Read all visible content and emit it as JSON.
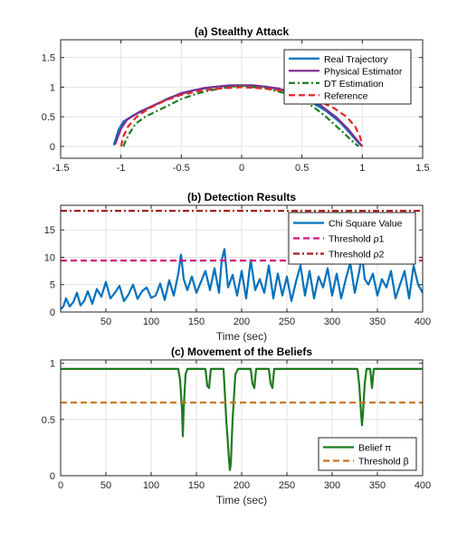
{
  "chart_data": [
    {
      "type": "line",
      "title": "(a) Stealthy Attack",
      "xlabel": "",
      "ylabel": "",
      "xlim": [
        -1.5,
        1.5
      ],
      "ylim": [
        -0.2,
        1.8
      ],
      "xticks": [
        -1.5,
        -1,
        -0.5,
        0,
        0.5,
        1,
        1.5
      ],
      "xtick_labels": [
        "-1.5",
        "-1",
        "-0.5",
        "0",
        "0.5",
        "1",
        "1.5"
      ],
      "yticks": [
        0,
        0.5,
        1,
        1.5
      ],
      "ytick_labels": [
        "0",
        "0.5",
        "1",
        "1.5"
      ],
      "grid": true,
      "legend_position": "top-right",
      "series": [
        {
          "name": "Real Trajectory",
          "color": "#0072BD",
          "dash": "solid",
          "x": [
            -1.06,
            -1.02,
            -0.98,
            -0.9,
            -0.8,
            -0.6,
            -0.4,
            -0.2,
            0,
            0.2,
            0.4,
            0.55,
            0.7,
            0.82,
            0.9,
            0.96,
            1.0
          ],
          "y": [
            0.02,
            0.28,
            0.42,
            0.52,
            0.62,
            0.82,
            0.95,
            1.01,
            1.03,
            1.01,
            0.92,
            0.78,
            0.6,
            0.4,
            0.22,
            0.08,
            0.0
          ]
        },
        {
          "name": "Physical Estimator",
          "color": "#7E2F8E",
          "dash": "solid",
          "x": [
            -1.05,
            -1.0,
            -0.95,
            -0.85,
            -0.7,
            -0.5,
            -0.3,
            -0.1,
            0.1,
            0.3,
            0.5,
            0.65,
            0.78,
            0.88,
            0.95,
            1.0
          ],
          "y": [
            0.03,
            0.3,
            0.45,
            0.58,
            0.72,
            0.9,
            0.99,
            1.03,
            1.03,
            0.98,
            0.86,
            0.7,
            0.5,
            0.3,
            0.12,
            0.0
          ]
        },
        {
          "name": "DT Estimation",
          "color": "#1E7B1E",
          "dash": "dashdot",
          "x": [
            -0.98,
            -0.96,
            -0.93,
            -0.88,
            -0.8,
            -0.7,
            -0.6,
            -0.5,
            -0.4,
            -0.3,
            -0.2,
            -0.1,
            0,
            0.1,
            0.2,
            0.3,
            0.4,
            0.5,
            0.6,
            0.7,
            0.78,
            0.85,
            0.9,
            0.94,
            0.97
          ],
          "y": [
            0.0,
            0.1,
            0.22,
            0.38,
            0.5,
            0.6,
            0.7,
            0.8,
            0.87,
            0.93,
            0.97,
            1.0,
            1.02,
            1.0,
            0.98,
            0.93,
            0.88,
            0.78,
            0.66,
            0.5,
            0.35,
            0.22,
            0.12,
            0.05,
            0.0
          ]
        },
        {
          "name": "Reference",
          "color": "#E8262A",
          "dash": "dashed",
          "x": [
            -1.0,
            -0.98,
            -0.94,
            -0.87,
            -0.77,
            -0.64,
            -0.5,
            -0.34,
            -0.17,
            0,
            0.17,
            0.34,
            0.5,
            0.64,
            0.77,
            0.87,
            0.94,
            0.98,
            1.0
          ],
          "y": [
            0.0,
            0.17,
            0.34,
            0.5,
            0.64,
            0.77,
            0.87,
            0.94,
            0.98,
            1.0,
            0.98,
            0.94,
            0.87,
            0.77,
            0.64,
            0.5,
            0.34,
            0.17,
            0.0
          ]
        }
      ]
    },
    {
      "type": "line",
      "title": "(b) Detection Results",
      "xlabel": "Time (sec)",
      "ylabel": "",
      "xlim": [
        0,
        400
      ],
      "ylim": [
        0,
        19.5
      ],
      "xticks": [
        50,
        100,
        150,
        200,
        250,
        300,
        350,
        400
      ],
      "xtick_labels": [
        "50",
        "100",
        "150",
        "200",
        "250",
        "300",
        "350",
        "400"
      ],
      "yticks": [
        0,
        5,
        10,
        15
      ],
      "ytick_labels": [
        "0",
        "5",
        "10",
        "15"
      ],
      "grid": true,
      "legend_position": "top-right",
      "series": [
        {
          "name": "Chi Square Value",
          "color": "#0072BD",
          "dash": "solid",
          "x": [
            0,
            3,
            6,
            10,
            14,
            18,
            22,
            26,
            30,
            35,
            40,
            45,
            50,
            55,
            60,
            65,
            70,
            75,
            80,
            85,
            90,
            95,
            100,
            105,
            110,
            115,
            120,
            125,
            130,
            133,
            136,
            140,
            145,
            150,
            155,
            160,
            165,
            170,
            175,
            178,
            181,
            185,
            190,
            195,
            200,
            205,
            210,
            215,
            220,
            225,
            230,
            235,
            240,
            245,
            250,
            255,
            260,
            265,
            270,
            275,
            280,
            285,
            290,
            295,
            300,
            305,
            310,
            315,
            320,
            325,
            330,
            333,
            336,
            340,
            345,
            350,
            355,
            360,
            365,
            370,
            375,
            380,
            385,
            390,
            395,
            400
          ],
          "y": [
            0.5,
            1.0,
            2.5,
            1.0,
            1.8,
            3.5,
            1.2,
            2.0,
            3.8,
            1.5,
            4.2,
            2.8,
            5.5,
            2.5,
            3.5,
            4.8,
            2.0,
            3.2,
            5.0,
            2.4,
            3.8,
            4.5,
            2.6,
            3.0,
            5.2,
            2.2,
            5.8,
            3.0,
            7.0,
            10.5,
            6.0,
            4.0,
            6.5,
            3.5,
            5.5,
            7.5,
            4.0,
            8.0,
            3.5,
            9.5,
            11.5,
            4.5,
            6.8,
            3.0,
            7.5,
            2.5,
            9.5,
            4.0,
            6.0,
            3.5,
            8.5,
            2.5,
            7.0,
            3.0,
            6.5,
            2.0,
            5.5,
            8.5,
            3.0,
            7.5,
            2.5,
            6.5,
            4.5,
            8.0,
            3.0,
            7.0,
            2.5,
            6.0,
            9.0,
            3.5,
            7.5,
            10.5,
            6.0,
            5.0,
            7.0,
            3.0,
            6.0,
            4.5,
            7.5,
            2.5,
            5.0,
            7.5,
            2.5,
            8.5,
            5.0,
            3.5
          ]
        },
        {
          "name": "Threshold ρ1",
          "color": "#D6127A",
          "dash": "dashed",
          "x": [
            0,
            400
          ],
          "y": [
            9.4,
            9.4
          ]
        },
        {
          "name": "Threshold ρ2",
          "color": "#A51C1C",
          "dash": "dashdot",
          "x": [
            0,
            400
          ],
          "y": [
            18.5,
            18.5
          ]
        }
      ]
    },
    {
      "type": "line",
      "title": "(c) Movement of the Beliefs",
      "xlabel": "Time (sec)",
      "ylabel": "",
      "xlim": [
        0,
        400
      ],
      "ylim": [
        0,
        1.03
      ],
      "xticks": [
        0,
        50,
        100,
        150,
        200,
        250,
        300,
        350,
        400
      ],
      "xtick_labels": [
        "0",
        "50",
        "100",
        "150",
        "200",
        "250",
        "300",
        "350",
        "400"
      ],
      "yticks": [
        0,
        0.5,
        1
      ],
      "ytick_labels": [
        "0",
        "0.5",
        "1"
      ],
      "grid": true,
      "legend_position": "bottom-right",
      "series": [
        {
          "name": "Belief π",
          "color": "#1E7B1E",
          "dash": "solid",
          "x": [
            0,
            130,
            132,
            134,
            135,
            136,
            138,
            140,
            160,
            162,
            164,
            166,
            180,
            183,
            186,
            187,
            188,
            190,
            193,
            196,
            210,
            212,
            214,
            216,
            230,
            232,
            234,
            236,
            328,
            330,
            332,
            333,
            334,
            336,
            338,
            342,
            344,
            346,
            400
          ],
          "y": [
            0.95,
            0.95,
            0.85,
            0.6,
            0.35,
            0.6,
            0.9,
            0.95,
            0.95,
            0.8,
            0.78,
            0.95,
            0.95,
            0.5,
            0.15,
            0.05,
            0.1,
            0.5,
            0.9,
            0.95,
            0.95,
            0.82,
            0.78,
            0.95,
            0.95,
            0.82,
            0.78,
            0.95,
            0.95,
            0.8,
            0.55,
            0.45,
            0.55,
            0.82,
            0.95,
            0.95,
            0.78,
            0.95,
            0.95
          ]
        },
        {
          "name": "Threshold β",
          "color": "#C8701A",
          "dash": "dashed",
          "x": [
            0,
            400
          ],
          "y": [
            0.65,
            0.65
          ]
        }
      ]
    }
  ]
}
